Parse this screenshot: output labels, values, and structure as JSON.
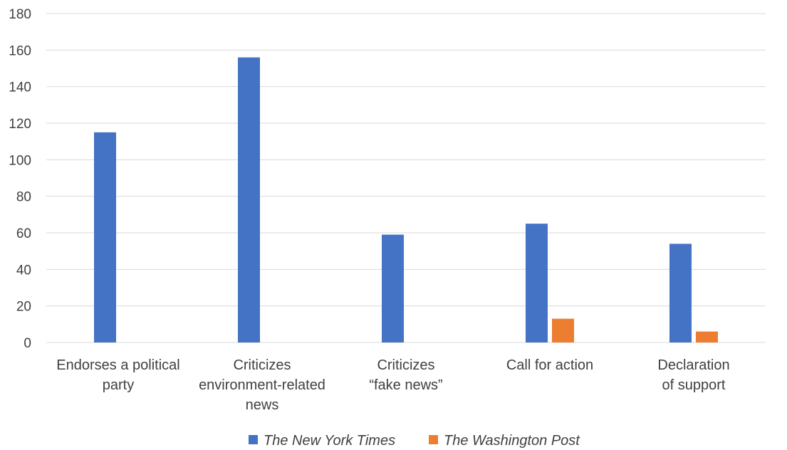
{
  "chart_data": {
    "type": "bar",
    "categories": [
      [
        "Endorses a political",
        "party"
      ],
      [
        "Criticizes",
        "environment-related",
        "news"
      ],
      [
        "Criticizes",
        "“fake news”"
      ],
      [
        "Call for action"
      ],
      [
        "Declaration",
        "of support"
      ]
    ],
    "series": [
      {
        "name": "The New York Times",
        "color": "#4472c4",
        "values": [
          115,
          156,
          59,
          65,
          54
        ]
      },
      {
        "name": "The Washington Post",
        "color": "#ed7d31",
        "values": [
          0,
          0,
          0,
          13,
          6
        ]
      }
    ],
    "ylim": [
      0,
      180
    ],
    "yticks": [
      0,
      20,
      40,
      60,
      80,
      100,
      120,
      140,
      160,
      180
    ],
    "grid": true,
    "legend_position": "bottom"
  }
}
